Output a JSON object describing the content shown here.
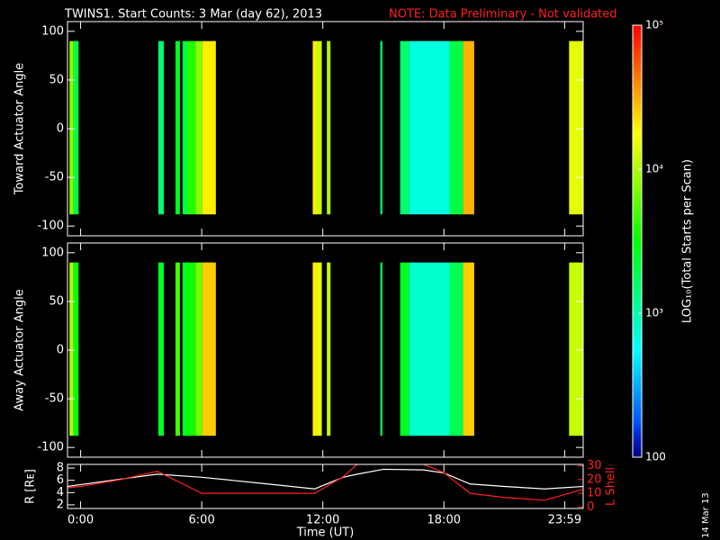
{
  "title": "TWINS1. Start Counts:  3 Mar (day  62), 2013",
  "note": "NOTE: Data Preliminary - Not validated",
  "side_label": "14 Mar 13",
  "chart_data": [
    {
      "type": "heatmap",
      "ylabel": "Toward Actuator Angle",
      "ylim": [
        -110,
        110
      ],
      "yticks": [
        -100,
        -50,
        0,
        50,
        100
      ],
      "xlim": [
        -0.65,
        24.9
      ],
      "xticks": [
        0,
        6,
        12,
        18,
        23.98
      ],
      "y_edges": [
        -88,
        90
      ],
      "start": [
        -0.55,
        -0.35,
        3.85,
        4.7,
        5.05,
        5.28,
        5.7,
        6.03,
        11.5,
        11.7,
        12.2,
        14.85,
        15.83,
        16.28,
        18.28,
        18.95,
        24.2
      ],
      "end": [
        -0.35,
        -0.1,
        4.12,
        4.92,
        5.28,
        5.7,
        6.03,
        6.7,
        11.7,
        11.95,
        12.38,
        14.95,
        16.28,
        18.28,
        18.95,
        19.5,
        24.88
      ],
      "values": [
        8000,
        2000,
        1500,
        2500,
        2000,
        4000,
        8000,
        20000,
        20000,
        12000,
        10000,
        1500,
        1500,
        700,
        2000,
        30000,
        15000
      ]
    },
    {
      "type": "heatmap",
      "ylabel": "Away Actuator Angle",
      "ylim": [
        -110,
        110
      ],
      "yticks": [
        -100,
        -50,
        0,
        50,
        100
      ],
      "xlim": [
        -0.65,
        24.9
      ],
      "xticks": [
        0,
        6,
        12,
        18,
        23.98
      ],
      "y_edges": [
        -88,
        90
      ],
      "start": [
        -0.55,
        -0.35,
        3.85,
        4.7,
        5.05,
        5.28,
        5.7,
        6.03,
        11.5,
        11.7,
        12.2,
        14.85,
        15.83,
        16.28,
        18.28,
        18.95,
        24.2
      ],
      "end": [
        -0.35,
        -0.1,
        4.12,
        4.92,
        5.28,
        5.7,
        6.03,
        6.7,
        11.7,
        11.95,
        12.38,
        14.95,
        16.28,
        18.28,
        18.95,
        19.5,
        24.88
      ],
      "values": [
        10000,
        3000,
        2500,
        5000,
        2500,
        3500,
        7000,
        25000,
        20000,
        15000,
        12000,
        2000,
        2500,
        800,
        1800,
        25000,
        12000
      ]
    },
    {
      "type": "line",
      "xlabel": "Time (UT)",
      "ylabel": "R [Rᴇ]",
      "y2label": "L Shell",
      "xlim": [
        -0.65,
        24.9
      ],
      "xticks": [
        {
          "value": 0,
          "label": "0:00"
        },
        {
          "value": 6,
          "label": "6:00"
        },
        {
          "value": 12,
          "label": "12:00"
        },
        {
          "value": 18,
          "label": "18:00"
        },
        {
          "value": 23.98,
          "label": "23:59"
        }
      ],
      "ylim": [
        1.4,
        8.6
      ],
      "yticks": [
        2,
        4,
        6,
        8
      ],
      "y2lim": [
        -1,
        31
      ],
      "y2ticks": [
        0,
        10,
        20,
        30
      ],
      "x": [
        -0.65,
        0,
        2,
        3.8,
        6,
        9,
        11.6,
        13,
        13.7,
        15,
        17,
        18,
        19.3,
        21,
        23,
        24.9
      ],
      "series": [
        {
          "color": "#ffffff",
          "values": [
            5.0,
            5.3,
            6.2,
            7.0,
            6.5,
            5.5,
            4.6,
            6.5,
            7.0,
            7.8,
            7.7,
            7.2,
            5.4,
            5.0,
            4.6,
            5.0
          ]
        },
        {
          "color": "#ff2020",
          "axis": "y2",
          "values": [
            14,
            15,
            20,
            26,
            10,
            10,
            10,
            22,
            31,
            null,
            31,
            25,
            10,
            7,
            5,
            13
          ]
        }
      ]
    },
    {
      "type": "colorbar",
      "label": "LOG₁₀(Total Starts per Scan)",
      "log": true,
      "zlim": [
        100,
        100000
      ],
      "zticks": [
        {
          "value": 100000,
          "label": "10⁵"
        },
        {
          "value": 10000,
          "label": "10⁴"
        },
        {
          "value": 1000,
          "label": "10³"
        },
        100
      ]
    }
  ]
}
